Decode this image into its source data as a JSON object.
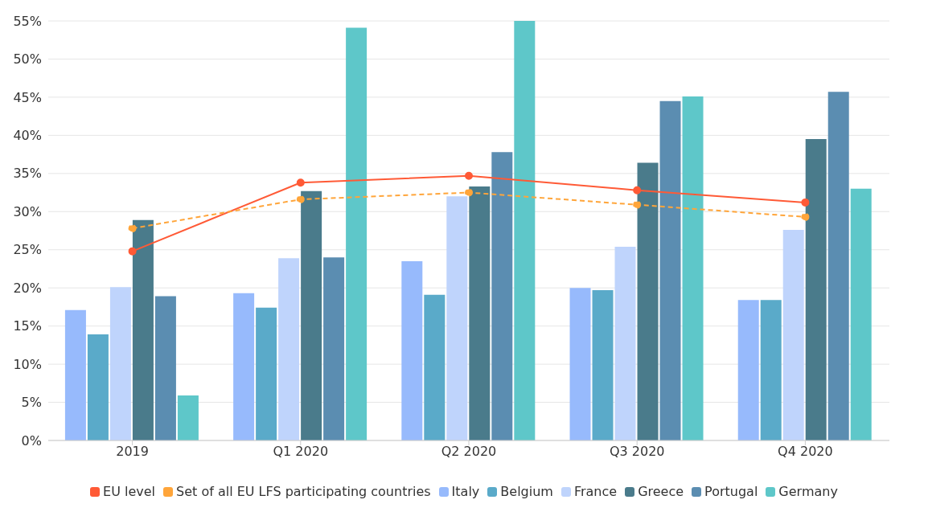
{
  "chart_data": {
    "type": "bar",
    "categories": [
      "2019",
      "Q1 2020",
      "Q2 2020",
      "Q3 2020",
      "Q4 2020"
    ],
    "series": [
      {
        "name": "EU level",
        "type": "line",
        "color": "#ff5a36",
        "line_style": "solid",
        "values": [
          24.8,
          33.8,
          34.7,
          32.8,
          31.2
        ]
      },
      {
        "name": "Set of all EU LFS participating countries",
        "type": "line",
        "color": "#ffa53a",
        "line_style": "dashed",
        "values": [
          27.8,
          31.6,
          32.5,
          30.9,
          29.3
        ]
      },
      {
        "name": "Italy",
        "color": "#97bafc",
        "values": [
          17.1,
          19.3,
          23.5,
          20.0,
          18.4
        ]
      },
      {
        "name": "Belgium",
        "color": "#5aaac9",
        "values": [
          13.9,
          17.4,
          19.1,
          19.7,
          18.4
        ]
      },
      {
        "name": "France",
        "color": "#bfd4fc",
        "values": [
          20.1,
          23.9,
          32.0,
          25.4,
          27.6
        ]
      },
      {
        "name": "Greece",
        "color": "#4a7b8b",
        "values": [
          28.9,
          32.7,
          33.3,
          36.4,
          39.5
        ]
      },
      {
        "name": "Portugal",
        "color": "#5b8db1",
        "values": [
          18.9,
          24.0,
          37.8,
          44.5,
          45.7
        ]
      },
      {
        "name": "Germany",
        "color": "#5ec7c9",
        "values": [
          5.9,
          54.1,
          55,
          45.1,
          33.0
        ]
      }
    ],
    "ylim": [
      0,
      55
    ],
    "yticks": [
      {
        "value": 0,
        "label": "0%"
      },
      {
        "value": 5,
        "label": "5%"
      },
      {
        "value": 10,
        "label": "10%"
      },
      {
        "value": 15,
        "label": "15%"
      },
      {
        "value": 20,
        "label": "20%"
      },
      {
        "value": 25,
        "label": "25%"
      },
      {
        "value": 30,
        "label": "30%"
      },
      {
        "value": 35,
        "label": "35%"
      },
      {
        "value": 40,
        "label": "40%"
      },
      {
        "value": 45,
        "label": "45%"
      },
      {
        "value": 50,
        "label": "50%"
      },
      {
        "value": 55,
        "label": "55%"
      }
    ],
    "grid": "y",
    "legend": "bottom",
    "marker": "circle"
  }
}
